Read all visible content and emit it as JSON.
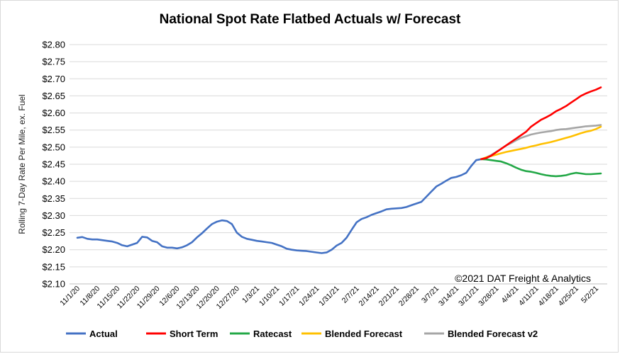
{
  "chart_data": {
    "type": "line",
    "title": "National Spot Rate Flatbed Actuals w/ Forecast",
    "ylabel": "Rolling 7-Day Rate Per Mile, ex. Fuel",
    "xlabel": "",
    "annotation": "©2021 DAT Freight & Analytics",
    "ylim": [
      2.1,
      2.8
    ],
    "yticks": [
      "$2.80",
      "$2.75",
      "$2.70",
      "$2.65",
      "$2.60",
      "$2.55",
      "$2.50",
      "$2.45",
      "$2.40",
      "$2.35",
      "$2.30",
      "$2.25",
      "$2.20",
      "$2.15",
      "$2.10"
    ],
    "ytick_values": [
      2.8,
      2.75,
      2.7,
      2.65,
      2.6,
      2.55,
      2.5,
      2.45,
      2.4,
      2.35,
      2.3,
      2.25,
      2.2,
      2.15,
      2.1
    ],
    "x_categories": [
      "11/1/20",
      "11/8/20",
      "11/15/20",
      "11/22/20",
      "11/29/20",
      "12/6/20",
      "12/13/20",
      "12/20/20",
      "12/27/20",
      "1/3/21",
      "1/10/21",
      "1/17/21",
      "1/24/21",
      "1/31/21",
      "2/7/21",
      "2/14/21",
      "2/21/21",
      "2/28/21",
      "3/7/21",
      "3/14/21",
      "3/21/21",
      "3/28/21",
      "4/4/21",
      "4/11/21",
      "4/18/21",
      "4/25/21",
      "5/2/21"
    ],
    "grid": true,
    "legend_position": "bottom",
    "series": [
      {
        "name": "Actual",
        "color": "#4472C4",
        "points": [
          [
            0,
            2.235
          ],
          [
            1,
            2.237
          ],
          [
            2,
            2.232
          ],
          [
            3,
            2.23
          ],
          [
            4,
            2.23
          ],
          [
            5,
            2.228
          ],
          [
            6,
            2.226
          ],
          [
            7,
            2.224
          ],
          [
            8,
            2.22
          ],
          [
            9,
            2.213
          ],
          [
            10,
            2.21
          ],
          [
            11,
            2.215
          ],
          [
            12,
            2.22
          ],
          [
            13,
            2.238
          ],
          [
            14,
            2.236
          ],
          [
            15,
            2.226
          ],
          [
            16,
            2.222
          ],
          [
            17,
            2.21
          ],
          [
            18,
            2.206
          ],
          [
            19,
            2.206
          ],
          [
            20,
            2.204
          ],
          [
            21,
            2.207
          ],
          [
            22,
            2.213
          ],
          [
            23,
            2.222
          ],
          [
            24,
            2.236
          ],
          [
            25,
            2.248
          ],
          [
            26,
            2.262
          ],
          [
            27,
            2.275
          ],
          [
            28,
            2.282
          ],
          [
            29,
            2.286
          ],
          [
            30,
            2.284
          ],
          [
            31,
            2.275
          ],
          [
            32,
            2.25
          ],
          [
            33,
            2.238
          ],
          [
            34,
            2.232
          ],
          [
            35,
            2.229
          ],
          [
            36,
            2.226
          ],
          [
            37,
            2.224
          ],
          [
            38,
            2.222
          ],
          [
            39,
            2.22
          ],
          [
            40,
            2.215
          ],
          [
            41,
            2.21
          ],
          [
            42,
            2.203
          ],
          [
            43,
            2.2
          ],
          [
            44,
            2.198
          ],
          [
            45,
            2.197
          ],
          [
            46,
            2.196
          ],
          [
            47,
            2.194
          ],
          [
            48,
            2.192
          ],
          [
            49,
            2.19
          ],
          [
            50,
            2.192
          ],
          [
            51,
            2.2
          ],
          [
            52,
            2.212
          ],
          [
            53,
            2.22
          ],
          [
            54,
            2.235
          ],
          [
            55,
            2.258
          ],
          [
            56,
            2.28
          ],
          [
            57,
            2.29
          ],
          [
            58,
            2.295
          ],
          [
            59,
            2.302
          ],
          [
            60,
            2.307
          ],
          [
            61,
            2.312
          ],
          [
            62,
            2.318
          ],
          [
            63,
            2.32
          ],
          [
            64,
            2.321
          ],
          [
            65,
            2.322
          ],
          [
            66,
            2.325
          ],
          [
            67,
            2.33
          ],
          [
            68,
            2.335
          ],
          [
            69,
            2.34
          ],
          [
            70,
            2.355
          ],
          [
            71,
            2.37
          ],
          [
            72,
            2.385
          ],
          [
            73,
            2.393
          ],
          [
            74,
            2.402
          ],
          [
            75,
            2.41
          ],
          [
            76,
            2.413
          ],
          [
            77,
            2.418
          ],
          [
            78,
            2.425
          ],
          [
            79,
            2.445
          ],
          [
            80,
            2.462
          ],
          [
            81,
            2.465
          ],
          [
            82,
            2.468
          ]
        ]
      },
      {
        "name": "Short Term",
        "color": "#FF0000",
        "points": [
          [
            81,
            2.465
          ],
          [
            82,
            2.468
          ],
          [
            83,
            2.475
          ],
          [
            84,
            2.485
          ],
          [
            85,
            2.495
          ],
          [
            86,
            2.505
          ],
          [
            87,
            2.515
          ],
          [
            88,
            2.525
          ],
          [
            89,
            2.535
          ],
          [
            90,
            2.545
          ],
          [
            91,
            2.56
          ],
          [
            92,
            2.57
          ],
          [
            93,
            2.58
          ],
          [
            94,
            2.587
          ],
          [
            95,
            2.595
          ],
          [
            96,
            2.605
          ],
          [
            97,
            2.612
          ],
          [
            98,
            2.62
          ],
          [
            99,
            2.63
          ],
          [
            100,
            2.64
          ],
          [
            101,
            2.65
          ],
          [
            102,
            2.657
          ],
          [
            103,
            2.663
          ],
          [
            104,
            2.668
          ],
          [
            105,
            2.675
          ]
        ]
      },
      {
        "name": "Ratecast",
        "color": "#23A847",
        "points": [
          [
            81,
            2.465
          ],
          [
            82,
            2.464
          ],
          [
            83,
            2.462
          ],
          [
            84,
            2.46
          ],
          [
            85,
            2.458
          ],
          [
            86,
            2.453
          ],
          [
            87,
            2.447
          ],
          [
            88,
            2.44
          ],
          [
            89,
            2.434
          ],
          [
            90,
            2.43
          ],
          [
            91,
            2.428
          ],
          [
            92,
            2.425
          ],
          [
            93,
            2.421
          ],
          [
            94,
            2.418
          ],
          [
            95,
            2.416
          ],
          [
            96,
            2.415
          ],
          [
            97,
            2.416
          ],
          [
            98,
            2.418
          ],
          [
            99,
            2.422
          ],
          [
            100,
            2.425
          ],
          [
            101,
            2.423
          ],
          [
            102,
            2.421
          ],
          [
            103,
            2.421
          ],
          [
            104,
            2.422
          ],
          [
            105,
            2.423
          ]
        ]
      },
      {
        "name": "Blended Forecast",
        "color": "#FFC000",
        "points": [
          [
            81,
            2.465
          ],
          [
            82,
            2.47
          ],
          [
            83,
            2.474
          ],
          [
            84,
            2.478
          ],
          [
            85,
            2.482
          ],
          [
            86,
            2.486
          ],
          [
            87,
            2.489
          ],
          [
            88,
            2.492
          ],
          [
            89,
            2.495
          ],
          [
            90,
            2.498
          ],
          [
            91,
            2.502
          ],
          [
            92,
            2.505
          ],
          [
            93,
            2.509
          ],
          [
            94,
            2.512
          ],
          [
            95,
            2.515
          ],
          [
            96,
            2.519
          ],
          [
            97,
            2.523
          ],
          [
            98,
            2.527
          ],
          [
            99,
            2.531
          ],
          [
            100,
            2.536
          ],
          [
            101,
            2.541
          ],
          [
            102,
            2.545
          ],
          [
            103,
            2.548
          ],
          [
            104,
            2.553
          ],
          [
            105,
            2.56
          ]
        ]
      },
      {
        "name": "Blended Forecast v2",
        "color": "#A6A6A6",
        "points": [
          [
            81,
            2.465
          ],
          [
            82,
            2.47
          ],
          [
            83,
            2.477
          ],
          [
            84,
            2.486
          ],
          [
            85,
            2.495
          ],
          [
            86,
            2.505
          ],
          [
            87,
            2.512
          ],
          [
            88,
            2.52
          ],
          [
            89,
            2.527
          ],
          [
            90,
            2.532
          ],
          [
            91,
            2.537
          ],
          [
            92,
            2.54
          ],
          [
            93,
            2.543
          ],
          [
            94,
            2.545
          ],
          [
            95,
            2.547
          ],
          [
            96,
            2.55
          ],
          [
            97,
            2.552
          ],
          [
            98,
            2.553
          ],
          [
            99,
            2.555
          ],
          [
            100,
            2.557
          ],
          [
            101,
            2.559
          ],
          [
            102,
            2.561
          ],
          [
            103,
            2.562
          ],
          [
            104,
            2.563
          ],
          [
            105,
            2.565
          ]
        ]
      }
    ]
  }
}
